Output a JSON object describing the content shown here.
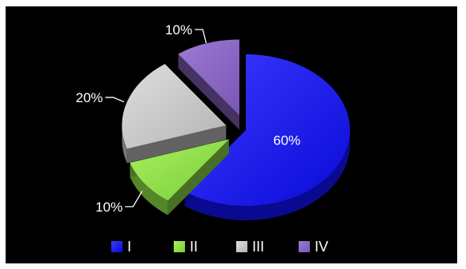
{
  "chart_data": {
    "type": "pie",
    "style": "3d-exploded",
    "categories": [
      "I",
      "II",
      "III",
      "IV"
    ],
    "values": [
      60,
      10,
      20,
      10
    ],
    "data_labels": [
      "60%",
      "10%",
      "20%",
      "10%"
    ],
    "colors": [
      "#1010f0",
      "#8ee04a",
      "#c4c4c4",
      "#8a66c2"
    ],
    "title": "",
    "legend_position": "bottom",
    "background": "#000000",
    "label_color": "#ffffff"
  }
}
